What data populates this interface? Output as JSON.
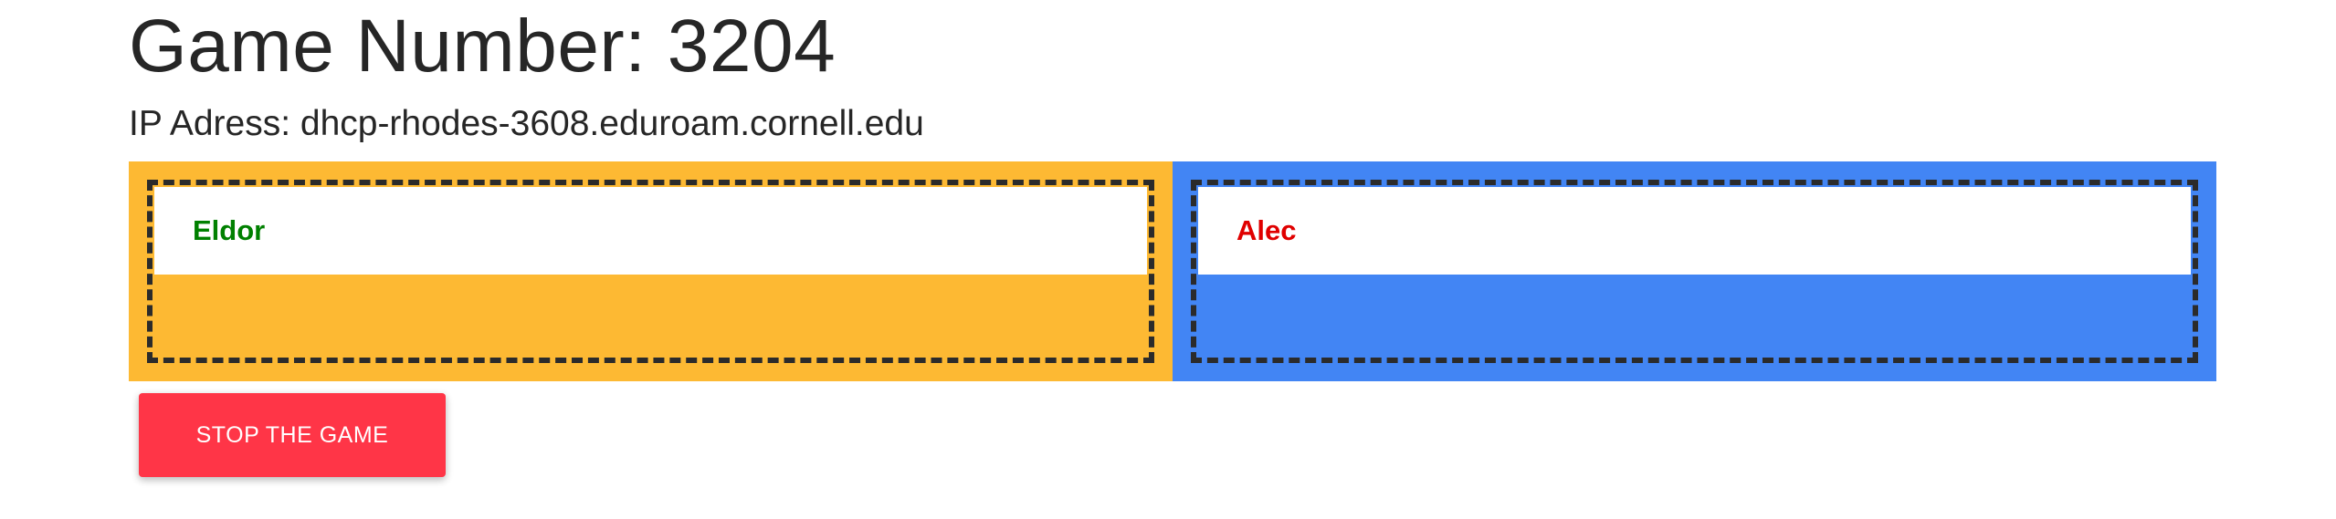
{
  "game": {
    "title": "Game Number: 3204",
    "ip_line": "IP Adress: dhcp-rhodes-3608.eduroam.cornell.edu"
  },
  "teams": [
    {
      "color": "#fdb933",
      "player": {
        "name": "Eldor",
        "name_color": "#008000"
      }
    },
    {
      "color": "#4285f4",
      "player": {
        "name": "Alec",
        "name_color": "#e00000"
      }
    }
  ],
  "actions": {
    "stop_label": "STOP THE GAME",
    "stop_color": "#ff3547"
  }
}
